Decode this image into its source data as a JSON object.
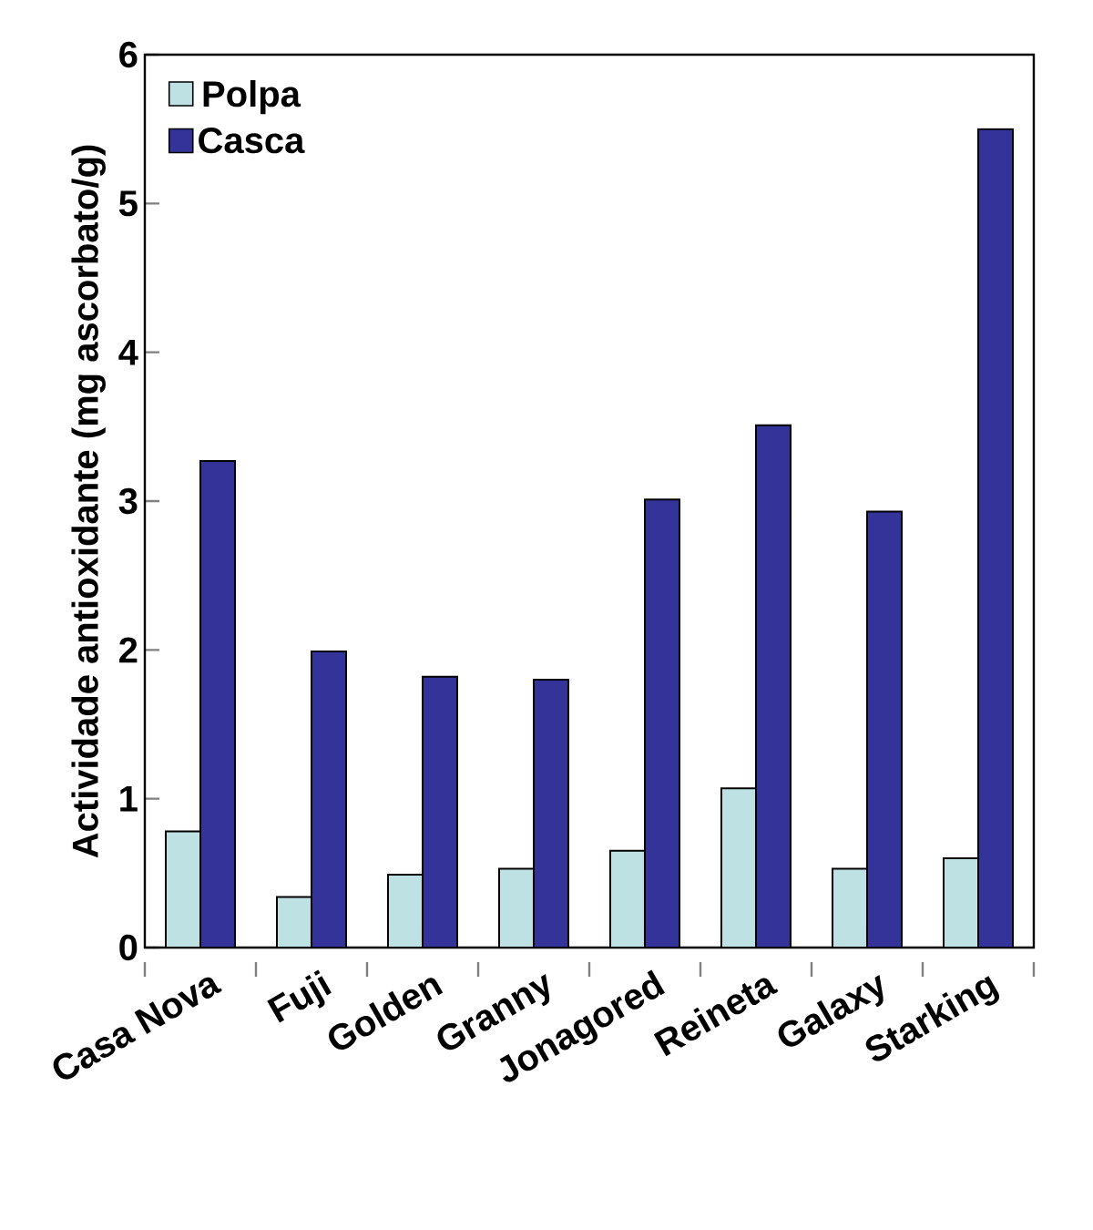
{
  "chart_data": {
    "type": "bar",
    "ylabel": "Actividade antioxidante (mg ascorbato/g)",
    "categories": [
      "Casa Nova",
      "Fuji",
      "Golden",
      "Granny",
      "Jonagored",
      "Reineta",
      "Galaxy",
      "Starking"
    ],
    "series": [
      {
        "name": "Polpa",
        "color": "#bee1e4",
        "values": [
          0.78,
          0.34,
          0.49,
          0.53,
          0.65,
          1.07,
          0.53,
          0.6
        ]
      },
      {
        "name": "Casca",
        "color": "#333399",
        "values": [
          3.27,
          1.99,
          1.82,
          1.8,
          3.01,
          3.51,
          2.93,
          5.5
        ]
      }
    ],
    "ylim": [
      0,
      6
    ],
    "yticks": [
      0,
      1,
      2,
      3,
      4,
      5,
      6
    ],
    "grid": false,
    "legend": "top left"
  }
}
